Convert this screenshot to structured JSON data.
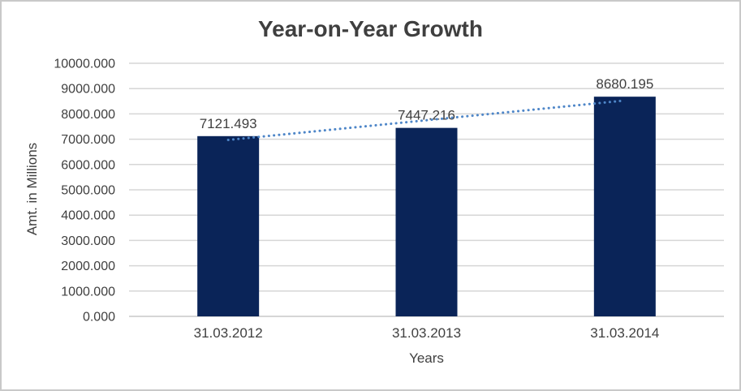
{
  "chart_data": {
    "type": "bar",
    "title": "Year-on-Year Growth",
    "xlabel": "Years",
    "ylabel": "Amt. in Millions",
    "categories": [
      "31.03.2012",
      "31.03.2013",
      "31.03.2014"
    ],
    "values": [
      7121.493,
      7447.216,
      8680.195
    ],
    "data_labels": [
      "7121.493",
      "7447.216",
      "8680.195"
    ],
    "ylim": [
      0,
      10000
    ],
    "y_tick_step": 1000,
    "y_tick_labels": [
      "0.000",
      "1000.000",
      "2000.000",
      "3000.000",
      "4000.000",
      "5000.000",
      "6000.000",
      "7000.000",
      "8000.000",
      "9000.000",
      "10000.000"
    ],
    "grid": true,
    "legend_position": "none",
    "trendline": {
      "type": "linear",
      "style": "dotted"
    },
    "colors": {
      "bar": "#0a2458",
      "trendline": "#4e86c8",
      "gridline": "#d6d6d6",
      "axis_line": "#c9c9c9",
      "text": "#404040",
      "title_text": "#3f3f3f",
      "background": "#ffffff",
      "frame_border": "#c9c9c9"
    }
  }
}
